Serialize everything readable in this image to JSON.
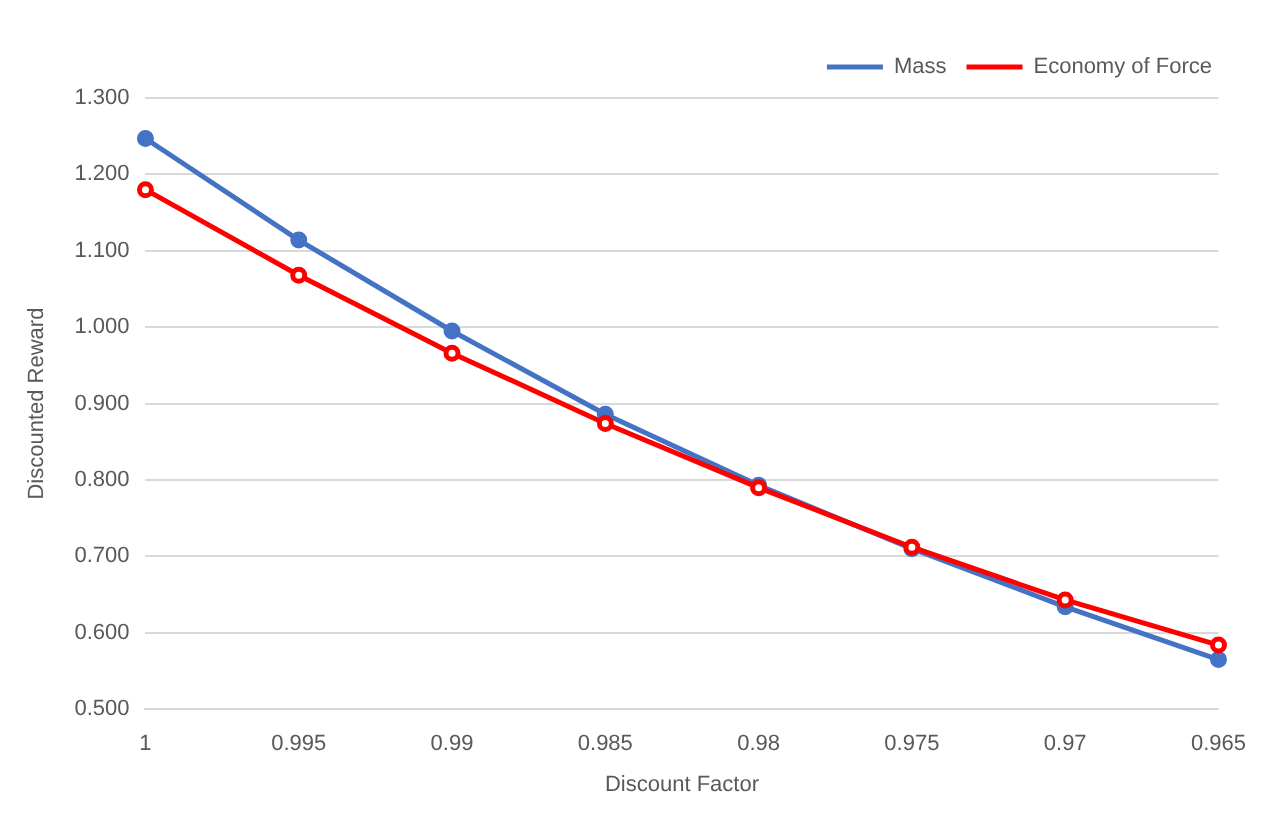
{
  "chart_data": {
    "type": "line",
    "xlabel": "Discount Factor",
    "ylabel": "Discounted Reward",
    "categories": [
      "1",
      "0.995",
      "0.99",
      "0.985",
      "0.98",
      "0.975",
      "0.97",
      "0.965"
    ],
    "series": [
      {
        "name": "Mass",
        "color": "#4472c4",
        "values": [
          1.247,
          1.114,
          0.995,
          0.886,
          0.793,
          0.71,
          0.634,
          0.565
        ]
      },
      {
        "name": "Economy of Force",
        "color": "#ff0000",
        "values": [
          1.18,
          1.068,
          0.966,
          0.874,
          0.79,
          0.712,
          0.643,
          0.584
        ]
      }
    ],
    "ylim": [
      0.5,
      1.3
    ],
    "yticks": [
      {
        "value": 0.5,
        "label": "0.500"
      },
      {
        "value": 0.6,
        "label": "0.600"
      },
      {
        "value": 0.7,
        "label": "0.700"
      },
      {
        "value": 0.8,
        "label": "0.800"
      },
      {
        "value": 0.9,
        "label": "0.900"
      },
      {
        "value": 1.0,
        "label": "1.000"
      },
      {
        "value": 1.1,
        "label": "1.100"
      },
      {
        "value": 1.2,
        "label": "1.200"
      },
      {
        "value": 1.3,
        "label": "1.300"
      }
    ],
    "grid": "y",
    "legend": "top right",
    "marker": "circle",
    "line_style": "solid"
  }
}
